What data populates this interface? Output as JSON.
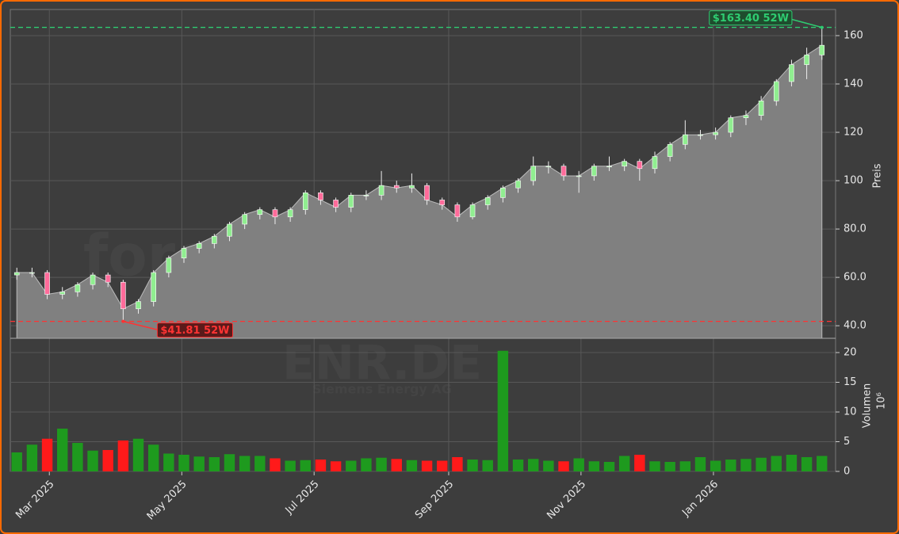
{
  "chart_data": {
    "type": "candlestick",
    "watermark": "forexsignale.trade",
    "ticker": "ENR.DE",
    "name": "Siemens Energy AG",
    "ylabel": "Preis",
    "y2label": "Volumen",
    "y2unit": "10⁶",
    "open": [
      61,
      62,
      62,
      53,
      54,
      57,
      61,
      58,
      47,
      50,
      62,
      68,
      72,
      74,
      77,
      82,
      86,
      88,
      85,
      88,
      95,
      92,
      89,
      94,
      94,
      98,
      97,
      98,
      92,
      90,
      85,
      90,
      93,
      97,
      100,
      106,
      106,
      102,
      102,
      106,
      106,
      108,
      105,
      110,
      115,
      119,
      119,
      120,
      126,
      127,
      133,
      141,
      148,
      152
    ],
    "high": [
      64,
      64,
      63,
      56,
      58,
      62,
      62,
      59,
      51,
      63,
      69,
      73,
      75,
      78,
      83,
      87,
      89,
      89,
      89,
      96,
      96,
      93,
      95,
      96,
      104,
      100,
      103,
      99,
      93,
      91,
      91,
      94,
      98,
      101,
      110,
      108,
      107,
      104,
      107,
      110,
      109,
      109,
      112,
      116,
      125,
      121,
      122,
      127,
      129,
      135,
      142,
      150,
      155,
      163.4
    ],
    "low": [
      59,
      60,
      51,
      51,
      52,
      55,
      56,
      41.81,
      45,
      48,
      60,
      66,
      70,
      72,
      75,
      80,
      84,
      82,
      83,
      86,
      90,
      87,
      87,
      92,
      92,
      95,
      95,
      90,
      88,
      83,
      84,
      88,
      91,
      95,
      98,
      103,
      100,
      95,
      100,
      104,
      104,
      100,
      103,
      108,
      113,
      117,
      117,
      118,
      123,
      125,
      131,
      139,
      142,
      150
    ],
    "close": [
      62,
      62,
      53,
      54,
      57,
      61,
      58,
      47,
      50,
      62,
      68,
      72,
      74,
      77,
      82,
      86,
      88,
      85,
      88,
      95,
      92,
      89,
      94,
      94,
      98,
      97,
      98,
      92,
      90,
      85,
      90,
      93,
      97,
      100,
      106,
      106,
      102,
      102,
      106,
      106,
      108,
      105,
      110,
      115,
      119,
      119,
      120,
      126,
      127,
      133,
      141,
      148,
      152,
      156
    ],
    "volume": [
      3.2,
      4.5,
      5.5,
      7.2,
      4.8,
      3.5,
      3.6,
      5.2,
      5.5,
      4.5,
      3.0,
      2.8,
      2.5,
      2.4,
      2.9,
      2.6,
      2.6,
      2.2,
      1.8,
      1.9,
      2.0,
      1.7,
      1.8,
      2.2,
      2.3,
      2.1,
      1.9,
      1.8,
      1.8,
      2.4,
      2.0,
      1.9,
      20.3,
      2.0,
      2.1,
      1.8,
      1.7,
      2.2,
      1.7,
      1.6,
      2.6,
      2.8,
      1.7,
      1.6,
      1.7,
      2.4,
      1.8,
      2.0,
      2.1,
      2.3,
      2.6,
      2.8,
      2.4,
      2.6
    ],
    "up_color": "#90ee90",
    "down_color": "#ff6b9a",
    "volume_up_color": "#1e9a1e",
    "volume_down_color": "#ff1a1a",
    "area_color": "#808080",
    "xlim": [
      -0.43,
      53.9
    ],
    "xticks": [
      {
        "value": 2.14,
        "label": "Mar 2025"
      },
      {
        "value": 10.86,
        "label": "May 2025"
      },
      {
        "value": 19.57,
        "label": "Jul 2025"
      },
      {
        "value": 28.43,
        "label": "Sep 2025"
      },
      {
        "value": 37.14,
        "label": "Nov 2025"
      },
      {
        "value": 45.86,
        "label": "Jan 2026"
      }
    ],
    "ylim": [
      34.8,
      170.8
    ],
    "yticks": [
      {
        "value": 40,
        "label": "40.0"
      },
      {
        "value": 60,
        "label": "60.0"
      },
      {
        "value": 80,
        "label": "80.0"
      },
      100,
      120,
      140,
      160
    ],
    "y2lim": [
      0,
      22.4
    ],
    "y2ticks": [
      0,
      5,
      10,
      15,
      20
    ],
    "grid": true,
    "annotations": [
      {
        "label": "$163.40 52W",
        "value": 163.4,
        "index": 53,
        "color": "#2ecc71"
      },
      {
        "label": "$41.81 52W",
        "value": 41.81,
        "index": 7,
        "color": "#ff3333"
      }
    ]
  }
}
